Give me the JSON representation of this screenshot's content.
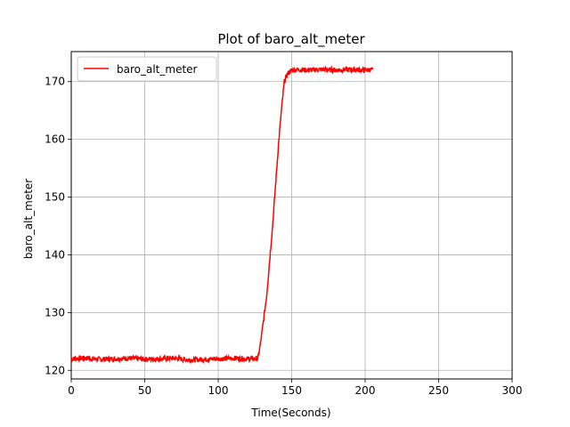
{
  "chart_data": {
    "type": "line",
    "title": "Plot of baro_alt_meter",
    "xlabel": "Time(Seconds)",
    "ylabel": "baro_alt_meter",
    "xlim": [
      0,
      300
    ],
    "ylim": [
      118.5,
      175.2
    ],
    "xticks": [
      0,
      50,
      100,
      150,
      200,
      250,
      300
    ],
    "yticks": [
      120,
      130,
      140,
      150,
      160,
      170
    ],
    "grid": true,
    "legend_position": "top-left",
    "series": [
      {
        "name": "baro_alt_meter",
        "color": "#ff0000",
        "x": [
          0,
          10,
          20,
          30,
          40,
          50,
          60,
          70,
          80,
          90,
          100,
          110,
          120,
          127,
          129,
          131,
          133,
          135,
          137,
          139,
          141,
          143,
          145,
          147,
          149,
          151,
          155,
          160,
          170,
          180,
          190,
          200,
          205
        ],
        "y": [
          122.0,
          122.1,
          121.9,
          122.0,
          122.1,
          121.9,
          122.0,
          122.1,
          121.8,
          121.9,
          122.0,
          122.1,
          122.0,
          122.0,
          125.0,
          129.0,
          133.0,
          139.0,
          145.0,
          152.0,
          159.0,
          165.0,
          170.0,
          171.3,
          171.8,
          172.0,
          172.1,
          172.0,
          172.1,
          172.0,
          172.1,
          172.0,
          172.1
        ]
      }
    ]
  }
}
